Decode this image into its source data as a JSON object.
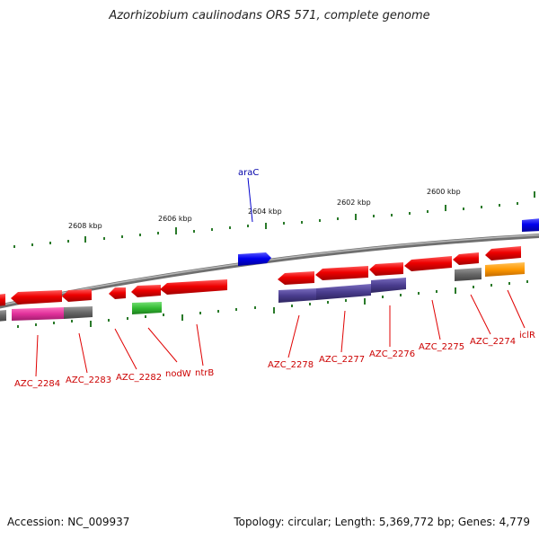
{
  "title": "Azorhizobium caulinodans ORS 571, complete genome",
  "footer": {
    "accession": "Accession: NC_009937",
    "summary": "Topology: circular; Length: 5,369,772 bp; Genes: 4,779"
  },
  "scale_labels": [
    "2608 kbp",
    "2606 kbp",
    "2604 kbp",
    "2602 kbp",
    "2600 kbp"
  ],
  "gene_labels": [
    "araC",
    "AZC_2284",
    "AZC_2283",
    "AZC_2282",
    "nodW",
    "ntrB",
    "AZC_2278",
    "AZC_2277",
    "AZC_2276",
    "AZC_2275",
    "AZC_2274",
    "iclR"
  ],
  "colors": {
    "forward_gene": "#e80000",
    "reverse_gene": "#0000ee",
    "backbone": "#808080",
    "tick": "#2a7a2a",
    "label_line": "#e00000",
    "purple_feature": "#4a3d8f",
    "pink_feature": "#e0309a",
    "gray_feature": "#666666",
    "green_feature": "#33bb33",
    "orange_feature": "#ff9900"
  }
}
